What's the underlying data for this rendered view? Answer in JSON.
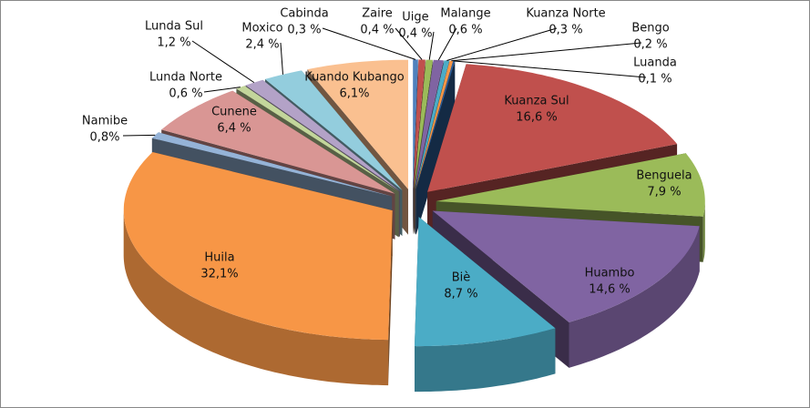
{
  "chart_data": {
    "type": "pie3d",
    "categories": [
      "Cabinda",
      "Zaire",
      "Uige",
      "Malange",
      "Kuanza Norte",
      "Bengo",
      "Luanda",
      "Kuanza Sul",
      "Benguela",
      "Huambo",
      "Biè",
      "Huila",
      "Namibe",
      "Cunene",
      "Lunda Norte",
      "Lunda Sul",
      "Moxico",
      "Kuando Kubango"
    ],
    "values": [
      0.3,
      0.4,
      0.4,
      0.6,
      0.3,
      0.2,
      0.1,
      16.6,
      7.9,
      14.6,
      8.7,
      32.1,
      0.8,
      6.4,
      0.6,
      1.2,
      2.4,
      6.1
    ],
    "value_labels": [
      "0,3 %",
      "0,4 %",
      "0,4 %",
      "0,6 %",
      "0,3 %",
      "0,2 %",
      "0,1 %",
      "16,6 %",
      "7,9 %",
      "14,6 %",
      "8,7 %",
      "32,1%",
      "0,8%",
      "6,4 %",
      "0,6 %",
      "1,2 %",
      "2,4 %",
      "6,1%"
    ],
    "colors": [
      "#4f81bd",
      "#c0504d",
      "#9bbb59",
      "#8064a2",
      "#4bacc6",
      "#f79646",
      "#2c5d98",
      "#c0504d",
      "#9bbb59",
      "#8064a2",
      "#4bacc6",
      "#f79646",
      "#95b3d7",
      "#d99694",
      "#c3d69b",
      "#b3a2c7",
      "#93cddd",
      "#fac090"
    ]
  }
}
